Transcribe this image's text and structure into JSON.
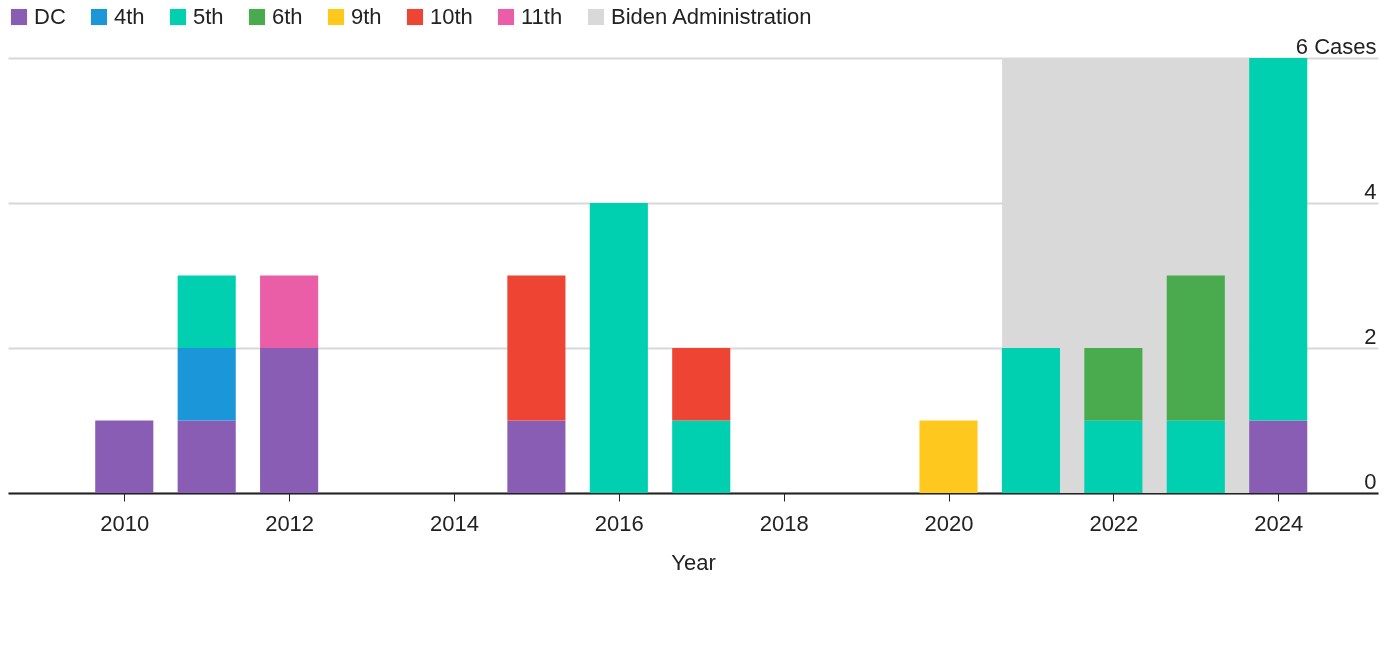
{
  "chart_data": {
    "type": "bar",
    "stacked": true,
    "xlabel": "Year",
    "x": [
      2010,
      2011,
      2012,
      2015,
      2016,
      2017,
      2020,
      2021,
      2022,
      2023,
      2024
    ],
    "series": [
      {
        "name": "DC",
        "color": "#8a5db5",
        "values": [
          1,
          1,
          2,
          1,
          null,
          null,
          null,
          null,
          null,
          null,
          1
        ]
      },
      {
        "name": "4th",
        "color": "#1a96d9",
        "values": [
          null,
          1,
          null,
          null,
          null,
          null,
          null,
          null,
          null,
          null,
          null
        ]
      },
      {
        "name": "5th",
        "color": "#00d0b0",
        "values": [
          null,
          1,
          null,
          null,
          4,
          1,
          null,
          2,
          1,
          1,
          5
        ]
      },
      {
        "name": "6th",
        "color": "#4aaa4e",
        "values": [
          null,
          null,
          null,
          null,
          null,
          null,
          null,
          null,
          1,
          2,
          null
        ]
      },
      {
        "name": "9th",
        "color": "#ffc81f",
        "values": [
          null,
          null,
          null,
          null,
          null,
          null,
          1,
          null,
          null,
          null,
          null
        ]
      },
      {
        "name": "10th",
        "color": "#ee4433",
        "values": [
          null,
          null,
          null,
          2,
          null,
          1,
          null,
          null,
          null,
          null,
          null
        ]
      },
      {
        "name": "11th",
        "color": "#ea5ea8",
        "values": [
          null,
          null,
          1,
          null,
          null,
          null,
          null,
          null,
          null,
          null,
          null
        ]
      }
    ],
    "bands": [
      {
        "axis": "x",
        "from": 2020.65,
        "to": 2023.65,
        "label": "Biden Administration",
        "color": "#d9d9d9"
      }
    ],
    "xlim": [
      2008.65,
      2025.15
    ],
    "xticks": [
      2010,
      2012,
      2014,
      2016,
      2018,
      2020,
      2022,
      2024
    ],
    "ylim": [
      0,
      6
    ],
    "yticks": [
      0,
      2,
      4,
      {
        "value": 6,
        "label": "6 Cases"
      }
    ],
    "grid": "y",
    "legend": "top left"
  }
}
